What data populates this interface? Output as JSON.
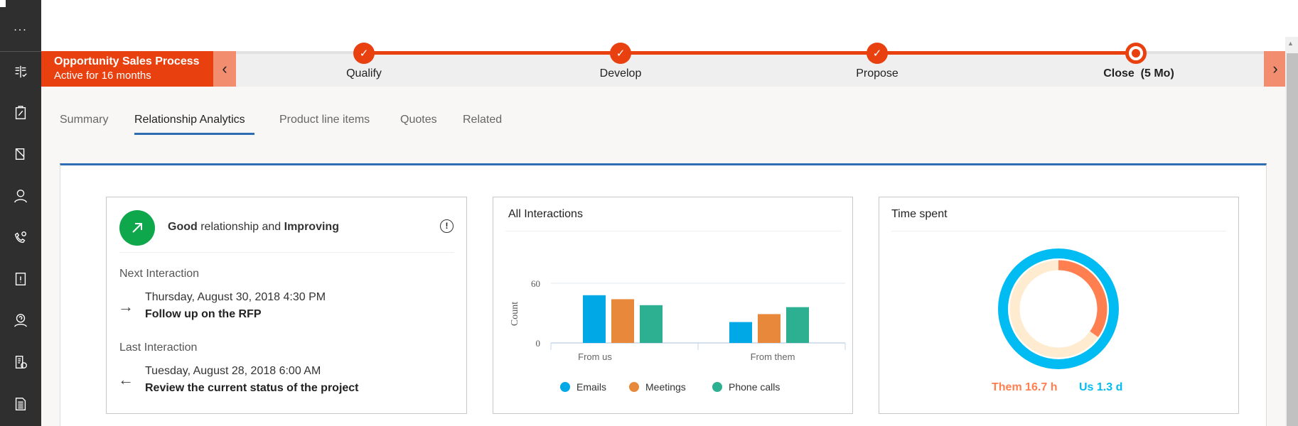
{
  "sidebar": {
    "more_label": "...",
    "icons": [
      "dashboard-icon",
      "clipboard-icon",
      "folder-icon",
      "person-icon",
      "phone-settings-icon",
      "alert-book-icon",
      "help-person-icon",
      "report-clock-icon",
      "document-icon"
    ]
  },
  "process": {
    "title": "Opportunity Sales Process",
    "subtitle": "Active for 16 months",
    "stages": [
      {
        "label": "Qualify",
        "status": "done"
      },
      {
        "label": "Develop",
        "status": "done"
      },
      {
        "label": "Propose",
        "status": "done"
      },
      {
        "label": "Close  (5 Mo)",
        "status": "active"
      }
    ],
    "accent": "#e8400f"
  },
  "tabs": [
    {
      "label": "Summary"
    },
    {
      "label": "Relationship Analytics",
      "active": true
    },
    {
      "label": "Product line items"
    },
    {
      "label": "Quotes"
    },
    {
      "label": "Related"
    }
  ],
  "relationship": {
    "health_word": "Good",
    "middle": " relationship and ",
    "trend_word": "Improving",
    "status_color": "#0ea74b",
    "next_label": "Next Interaction",
    "next_date": "Thursday, August 30, 2018 4:30 PM",
    "next_title": "Follow up on the RFP",
    "last_label": "Last Interaction",
    "last_date": "Tuesday, August 28, 2018 6:00 AM",
    "last_title": "Review the current status of the project"
  },
  "chart_data": [
    {
      "type": "bar",
      "title": "All Interactions",
      "ylabel": "Count",
      "xlabel": "",
      "ylim": [
        0,
        60
      ],
      "yticks": [
        "0",
        "60"
      ],
      "categories": [
        "From us",
        "From them"
      ],
      "legend": "bottom",
      "series": [
        {
          "name": "Emails",
          "values": [
            48,
            21
          ],
          "color": "#00a8e6"
        },
        {
          "name": "Meetings",
          "values": [
            44,
            29
          ],
          "color": "#e8883a"
        },
        {
          "name": "Phone calls",
          "values": [
            38,
            36
          ],
          "color": "#2db092"
        }
      ]
    },
    {
      "type": "pie",
      "title": "Time spent",
      "series": [
        {
          "name": "Them",
          "label": "Them 16.7 h",
          "hours": 16.7,
          "color": "#ff7f50"
        },
        {
          "name": "Us",
          "label": "Us 1.3 d",
          "hours": 31.2,
          "color": "#00bcf2"
        }
      ],
      "track_color": "#ffebcf"
    }
  ]
}
